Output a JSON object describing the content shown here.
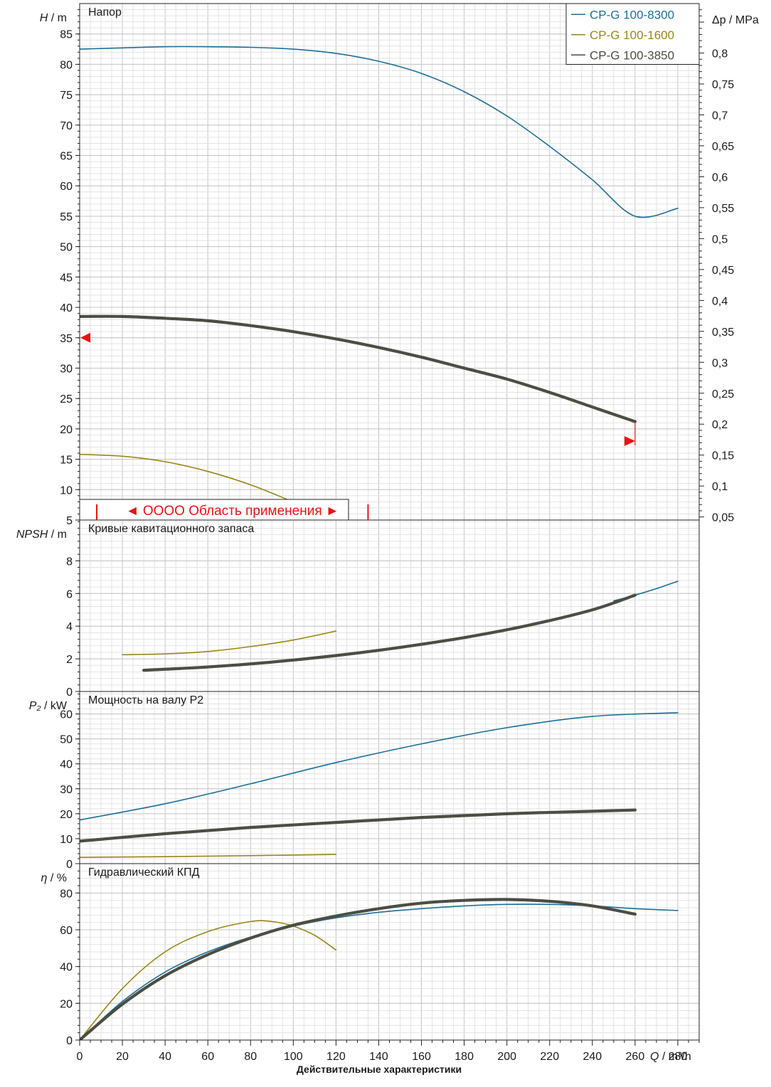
{
  "footer_title": "Действительные характеристики",
  "colors": {
    "CP-G 100-8300": "#1a6e9b",
    "CP-G 100-1600": "#9a8515",
    "CP-G 100-3850": "#4b4e42",
    "application_marker": "#ee1111"
  },
  "chart_data": [
    {
      "type": "line",
      "panel": "head",
      "title": "Напор",
      "ylabel_symbol": "H",
      "ylabel_unit": " / m",
      "y2label_symbol": "Δp",
      "y2label_unit": " / MPa",
      "xlabel_symbol": "Q",
      "xlabel_unit": " / m³/h",
      "xlim": [
        0,
        290
      ],
      "ylim": [
        5,
        90
      ],
      "y2lim": [
        0.045,
        0.88
      ],
      "x_ticks": [
        0,
        20,
        40,
        60,
        80,
        100,
        120,
        140,
        160,
        180,
        200,
        220,
        240,
        260,
        280
      ],
      "y_ticks": [
        5,
        10,
        15,
        20,
        25,
        30,
        35,
        40,
        45,
        50,
        55,
        60,
        65,
        70,
        75,
        80,
        85
      ],
      "y2_ticks": [
        "0,05",
        "0,1",
        "0,15",
        "0,2",
        "0,25",
        "0,3",
        "0,35",
        "0,4",
        "0,45",
        "0,5",
        "0,55",
        "0,6",
        "0,65",
        "0,7",
        "0,75",
        "0,8"
      ],
      "grid": true,
      "legend_position": "top-right",
      "series": [
        {
          "name": "CP-G 100-8300",
          "x": [
            0,
            20,
            40,
            60,
            80,
            100,
            120,
            140,
            160,
            180,
            200,
            220,
            240,
            260,
            280
          ],
          "y": [
            82.5,
            82.7,
            82.9,
            82.9,
            82.8,
            82.5,
            81.8,
            80.5,
            78.5,
            75.5,
            71.5,
            66.5,
            61.0,
            55.0,
            56.3
          ]
        },
        {
          "name": "CP-G 100-1600",
          "x": [
            0,
            20,
            40,
            60,
            80,
            100,
            107
          ],
          "y": [
            15.8,
            15.5,
            14.6,
            13.0,
            10.8,
            8.0,
            7.2
          ]
        },
        {
          "name": "CP-G 100-3850",
          "x": [
            0,
            20,
            40,
            60,
            80,
            100,
            120,
            140,
            160,
            180,
            200,
            220,
            240,
            260
          ],
          "y": [
            38.5,
            38.5,
            38.2,
            37.8,
            37.0,
            36.0,
            34.8,
            33.4,
            31.8,
            30.0,
            28.2,
            26.0,
            23.6,
            21.2
          ]
        }
      ],
      "operating_marker": {
        "left_head": 35.0,
        "right_flow": 260,
        "right_head": 18.0
      },
      "application_range": {
        "label": "◄ OOOO Область применения ►",
        "from_x": 8,
        "to_x": 135
      }
    },
    {
      "type": "line",
      "panel": "npsh",
      "title": "Кривые кавитационного запаса",
      "ylabel_symbol": "NPSH",
      "ylabel_unit": " / m",
      "xlim": [
        0,
        290
      ],
      "ylim": [
        0,
        10.5
      ],
      "y_ticks": [
        0,
        2,
        4,
        6,
        8
      ],
      "grid": true,
      "series": [
        {
          "name": "CP-G 100-8300",
          "x": [
            250,
            260,
            270,
            280
          ],
          "y": [
            5.55,
            5.9,
            6.3,
            6.75
          ]
        },
        {
          "name": "CP-G 100-1600",
          "x": [
            20,
            40,
            60,
            80,
            100,
            120
          ],
          "y": [
            2.25,
            2.3,
            2.45,
            2.75,
            3.15,
            3.7
          ]
        },
        {
          "name": "CP-G 100-3850",
          "x": [
            30,
            60,
            90,
            120,
            150,
            180,
            210,
            240,
            260
          ],
          "y": [
            1.3,
            1.5,
            1.8,
            2.2,
            2.7,
            3.3,
            4.05,
            5.0,
            5.9
          ]
        }
      ]
    },
    {
      "type": "line",
      "panel": "power",
      "title": "Мощность на валу P2",
      "ylabel_symbol": "P₂",
      "ylabel_unit": " / kW",
      "xlim": [
        0,
        290
      ],
      "ylim": [
        0,
        69
      ],
      "y_ticks": [
        0,
        10,
        20,
        30,
        40,
        50,
        60
      ],
      "grid": true,
      "series": [
        {
          "name": "CP-G 100-8300",
          "x": [
            0,
            40,
            80,
            120,
            160,
            200,
            240,
            280
          ],
          "y": [
            17.5,
            24,
            32,
            40.5,
            48,
            54.5,
            59,
            60.5
          ]
        },
        {
          "name": "CP-G 100-1600",
          "x": [
            0,
            40,
            80,
            120
          ],
          "y": [
            2.5,
            2.8,
            3.2,
            3.7
          ]
        },
        {
          "name": "CP-G 100-3850",
          "x": [
            0,
            40,
            80,
            120,
            160,
            200,
            240,
            260
          ],
          "y": [
            9.0,
            12.0,
            14.5,
            16.5,
            18.5,
            20.0,
            21.0,
            21.5
          ]
        }
      ]
    },
    {
      "type": "line",
      "panel": "efficiency",
      "title": "Гидравлический КПД",
      "ylabel_symbol": "η",
      "ylabel_unit": " / %",
      "xlim": [
        0,
        290
      ],
      "ylim": [
        0,
        96
      ],
      "y_ticks": [
        0,
        20,
        40,
        60,
        80
      ],
      "grid": true,
      "series": [
        {
          "name": "CP-G 100-8300",
          "x": [
            0,
            20,
            40,
            60,
            80,
            100,
            120,
            140,
            160,
            180,
            200,
            220,
            240,
            260,
            280
          ],
          "y": [
            0,
            21,
            37,
            48,
            56,
            62,
            66.5,
            69.5,
            71.5,
            73,
            73.8,
            73.8,
            73,
            71.5,
            70.5
          ]
        },
        {
          "name": "CP-G 100-1600",
          "x": [
            0,
            20,
            40,
            60,
            80,
            90,
            100,
            110,
            120
          ],
          "y": [
            0,
            28,
            48,
            59,
            64.5,
            64.5,
            62,
            57,
            49
          ]
        },
        {
          "name": "CP-G 100-3850",
          "x": [
            0,
            20,
            40,
            60,
            80,
            100,
            120,
            140,
            160,
            180,
            200,
            220,
            240,
            260
          ],
          "y": [
            0,
            19.5,
            35,
            46.5,
            55.5,
            62.5,
            67.5,
            71.5,
            74.5,
            76,
            76.5,
            75.5,
            73,
            68.5
          ]
        }
      ]
    }
  ]
}
